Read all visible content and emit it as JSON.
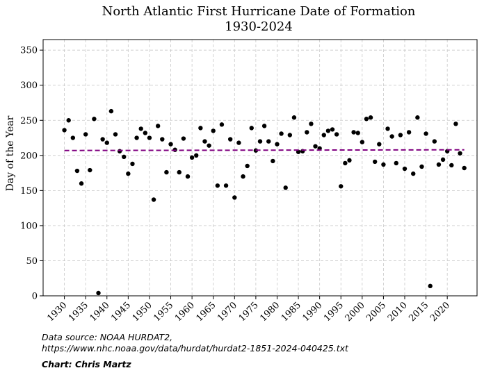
{
  "chart_data": {
    "type": "scatter",
    "title": [
      "North Atlantic First Hurricane Date of Formation",
      "1930-2024"
    ],
    "xlabel": "",
    "ylabel": "Day of the Year",
    "xlim": [
      1925,
      2027
    ],
    "ylim": [
      0,
      365
    ],
    "grid": true,
    "x_ticks": [
      1930,
      1935,
      1940,
      1945,
      1950,
      1955,
      1960,
      1965,
      1970,
      1975,
      1980,
      1985,
      1990,
      1995,
      2000,
      2005,
      2010,
      2015,
      2020
    ],
    "y_ticks": [
      0,
      50,
      100,
      150,
      200,
      250,
      300,
      350
    ],
    "series": [
      {
        "name": "First hurricane formation",
        "color": "#000000",
        "x": [
          1930,
          1931,
          1932,
          1933,
          1934,
          1935,
          1936,
          1937,
          1938,
          1939,
          1940,
          1941,
          1942,
          1943,
          1944,
          1945,
          1946,
          1947,
          1948,
          1949,
          1950,
          1951,
          1952,
          1953,
          1954,
          1955,
          1956,
          1957,
          1958,
          1959,
          1960,
          1961,
          1962,
          1963,
          1964,
          1965,
          1966,
          1967,
          1968,
          1969,
          1970,
          1971,
          1972,
          1973,
          1974,
          1975,
          1976,
          1977,
          1978,
          1979,
          1980,
          1981,
          1982,
          1983,
          1984,
          1985,
          1986,
          1987,
          1988,
          1989,
          1990,
          1991,
          1992,
          1993,
          1994,
          1995,
          1996,
          1997,
          1998,
          1999,
          2000,
          2001,
          2002,
          2003,
          2004,
          2005,
          2006,
          2007,
          2008,
          2009,
          2010,
          2011,
          2012,
          2013,
          2014,
          2015,
          2016,
          2017,
          2018,
          2019,
          2020,
          2021,
          2022,
          2023,
          2024
        ],
        "y": [
          236,
          250,
          225,
          178,
          160,
          230,
          179,
          252,
          4,
          223,
          218,
          263,
          230,
          206,
          198,
          174,
          188,
          225,
          238,
          232,
          225,
          137,
          242,
          223,
          176,
          216,
          208,
          176,
          224,
          170,
          197,
          200,
          239,
          220,
          214,
          235,
          157,
          244,
          157,
          223,
          140,
          218,
          170,
          185,
          239,
          207,
          220,
          242,
          220,
          192,
          216,
          231,
          154,
          229,
          254,
          205,
          206,
          233,
          245,
          213,
          210,
          229,
          235,
          237,
          230,
          156,
          189,
          193,
          233,
          232,
          219,
          252,
          254,
          191,
          216,
          187,
          238,
          227,
          189,
          229,
          181,
          233,
          174,
          254,
          184,
          231,
          14,
          220,
          187,
          194,
          206,
          186,
          245,
          203,
          182
        ]
      },
      {
        "name": "Trend line",
        "type": "line",
        "style": "dashed",
        "color": "#800080",
        "x": [
          1930,
          2024
        ],
        "y": [
          207,
          208
        ]
      }
    ],
    "annotations": [
      "Data source: NOAA HURDAT2,",
      " https://www.nhc.noaa.gov/data/hurdat/hurdat2-1851-2024-040425.txt",
      "Chart: Chris Martz"
    ]
  }
}
